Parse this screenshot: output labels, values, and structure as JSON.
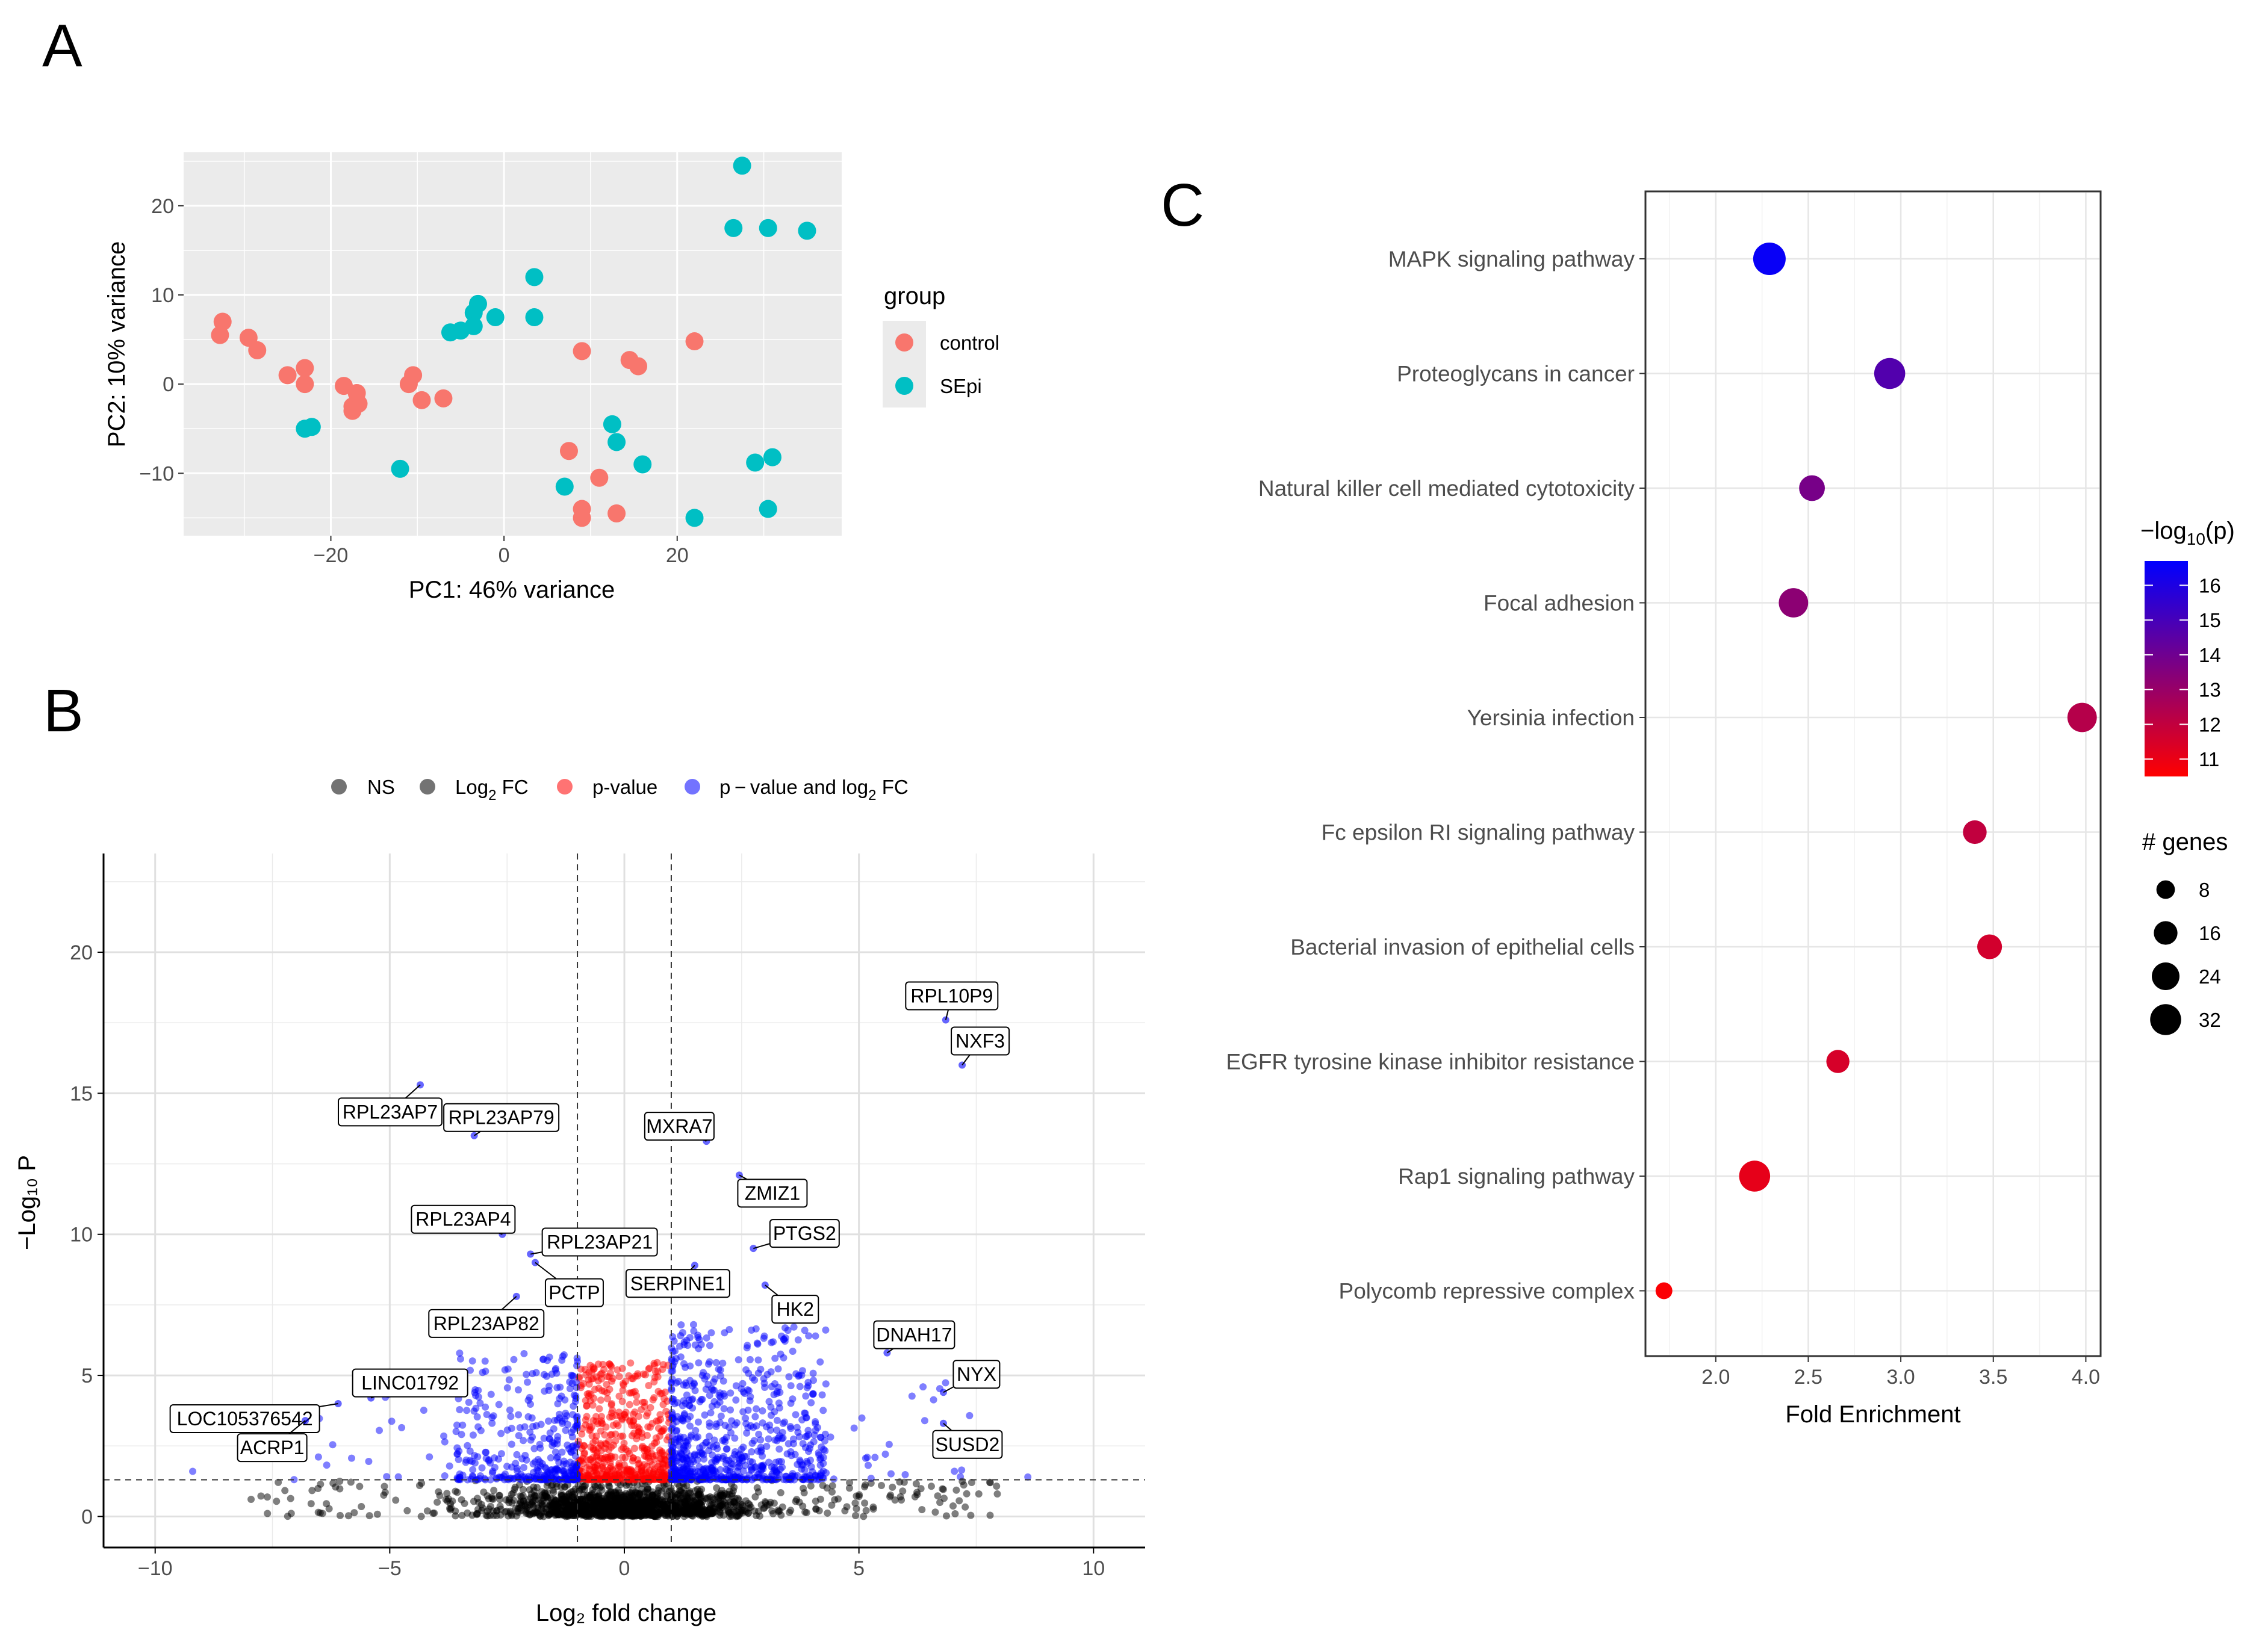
{
  "panels": {
    "a": "A",
    "b": "B",
    "c": "C"
  },
  "chart_data": [
    {
      "id": "pca",
      "type": "scatter",
      "title": "",
      "xlabel": "PC1: 46% variance",
      "ylabel": "PC2: 10% variance",
      "xlim": [
        -37,
        39
      ],
      "ylim": [
        -17,
        26
      ],
      "xticks": [
        -20,
        0,
        20
      ],
      "yticks": [
        -10,
        0,
        10,
        20
      ],
      "legend": {
        "title": "group",
        "position": "right"
      },
      "series": [
        {
          "name": "control",
          "color": "#F8766D",
          "points": [
            [
              -32.5,
              7
            ],
            [
              -32.8,
              5.5
            ],
            [
              -29.5,
              5.2
            ],
            [
              -28.5,
              3.8
            ],
            [
              -25,
              1
            ],
            [
              -23,
              1.8
            ],
            [
              -23,
              0
            ],
            [
              -18.5,
              -0.2
            ],
            [
              -17,
              -1
            ],
            [
              -17.5,
              -2.5
            ],
            [
              -16.8,
              -2.2
            ],
            [
              -17.5,
              -3
            ],
            [
              -11,
              0
            ],
            [
              -10.5,
              1
            ],
            [
              -9.5,
              -1.8
            ],
            [
              -7,
              -1.6
            ],
            [
              9,
              3.7
            ],
            [
              14.5,
              2.7
            ],
            [
              15.5,
              2
            ],
            [
              22,
              4.8
            ],
            [
              7.5,
              -7.5
            ],
            [
              11,
              -10.5
            ],
            [
              9,
              -14
            ],
            [
              9,
              -15
            ],
            [
              13,
              -14.5
            ]
          ]
        },
        {
          "name": "SEpi",
          "color": "#00BFC4",
          "points": [
            [
              27.5,
              24.5
            ],
            [
              26.5,
              17.5
            ],
            [
              30.5,
              17.5
            ],
            [
              35,
              17.2
            ],
            [
              3.5,
              12
            ],
            [
              3.5,
              7.5
            ],
            [
              -3,
              9
            ],
            [
              -3.5,
              8
            ],
            [
              -1,
              7.5
            ],
            [
              -5,
              6
            ],
            [
              -6.2,
              5.8
            ],
            [
              -3.5,
              6.5
            ],
            [
              -23,
              -5
            ],
            [
              -22.2,
              -4.8
            ],
            [
              -12,
              -9.5
            ],
            [
              12.5,
              -4.5
            ],
            [
              13,
              -6.5
            ],
            [
              16,
              -9
            ],
            [
              7,
              -11.5
            ],
            [
              29,
              -8.8
            ],
            [
              31,
              -8.2
            ],
            [
              30.5,
              -14
            ],
            [
              22,
              -15
            ]
          ]
        }
      ]
    },
    {
      "id": "volcano",
      "type": "scatter",
      "title": "",
      "xlabel": "Log₂ fold change",
      "ylabel": "−Log₁₀ P",
      "xlim": [
        -11.1,
        11.1
      ],
      "ylim": [
        -1.1,
        23.5
      ],
      "xticks": [
        -10,
        -5,
        0,
        5,
        10
      ],
      "yticks": [
        0,
        5,
        10,
        15,
        20
      ],
      "thresholds": {
        "log2fc": [
          -1,
          1
        ],
        "neglog10p": 1.3
      },
      "legend": {
        "position": "top",
        "entries": [
          {
            "label": "NS",
            "color": "#000000"
          },
          {
            "label_main": "Log",
            "label_sub": "2",
            "label_tail": " FC",
            "color": "#000000"
          },
          {
            "label": "p-value",
            "color": "#FF0000"
          },
          {
            "label_main": "p − value and log",
            "label_sub": "2",
            "label_tail": " FC",
            "color": "#0000FF"
          }
        ]
      },
      "labeled_genes": [
        {
          "label": "RPL10P9",
          "x": 6.85,
          "y": 17.6
        },
        {
          "label": "NXF3",
          "x": 7.2,
          "y": 16.0
        },
        {
          "label": "RPL23AP7",
          "x": -4.35,
          "y": 15.3
        },
        {
          "label": "RPL23AP79",
          "x": -3.2,
          "y": 13.5
        },
        {
          "label": "MXRA7",
          "x": 1.75,
          "y": 13.3
        },
        {
          "label": "ZMIZ1",
          "x": 2.45,
          "y": 12.1
        },
        {
          "label": "RPL23AP4",
          "x": -2.6,
          "y": 10.0
        },
        {
          "label": "RPL23AP21",
          "x": -2.0,
          "y": 9.3
        },
        {
          "label": "PTGS2",
          "x": 2.75,
          "y": 9.5
        },
        {
          "label": "PCTP",
          "x": -1.9,
          "y": 9.0
        },
        {
          "label": "SERPINE1",
          "x": 1.5,
          "y": 8.9
        },
        {
          "label": "HK2",
          "x": 3.0,
          "y": 8.2
        },
        {
          "label": "RPL23AP82",
          "x": -2.3,
          "y": 7.8
        },
        {
          "label": "DNAH17",
          "x": 5.6,
          "y": 5.8
        },
        {
          "label": "NYX",
          "x": 6.8,
          "y": 4.4
        },
        {
          "label": "LINC01792",
          "x": -5.4,
          "y": 4.2
        },
        {
          "label": "LOC105376542",
          "x": -6.1,
          "y": 4.0
        },
        {
          "label": "ACRP1",
          "x": -6.8,
          "y": 3.4
        },
        {
          "label": "SUSD2",
          "x": 6.8,
          "y": 3.3
        }
      ]
    },
    {
      "id": "enrichment",
      "type": "scatter",
      "title": "",
      "xlabel": "Fold Enrichment",
      "ylabel": "",
      "xlim": [
        1.62,
        4.08
      ],
      "xticks": [
        2.0,
        2.5,
        3.0,
        3.5,
        4.0
      ],
      "xtick_labels": [
        "2.0",
        "2.5",
        "3.0",
        "3.5",
        "4.0"
      ],
      "categories": [
        "MAPK signaling pathway",
        "Proteoglycans in cancer",
        "Natural killer cell mediated cytotoxicity",
        "Focal adhesion",
        "Yersinia infection",
        "Fc epsilon RI signaling pathway",
        "Bacterial invasion of epithelial cells",
        "EGFR tyrosine kinase inhibitor resistance",
        "Rap1 signaling pathway",
        "Polycomb repressive complex"
      ],
      "points": [
        {
          "term": "MAPK signaling pathway",
          "fold": 2.29,
          "neglog10p": 16.5,
          "genes": 36
        },
        {
          "term": "Proteoglycans in cancer",
          "fold": 2.94,
          "neglog10p": 14.7,
          "genes": 32
        },
        {
          "term": "Natural killer cell mediated cytotoxicity",
          "fold": 2.52,
          "neglog10p": 13.8,
          "genes": 20
        },
        {
          "term": "Focal adhesion",
          "fold": 2.42,
          "neglog10p": 13.3,
          "genes": 28
        },
        {
          "term": "Yersinia infection",
          "fold": 3.98,
          "neglog10p": 12.3,
          "genes": 28
        },
        {
          "term": "Fc epsilon RI signaling pathway",
          "fold": 3.4,
          "neglog10p": 12.0,
          "genes": 16
        },
        {
          "term": "Bacterial invasion of epithelial cells",
          "fold": 3.48,
          "neglog10p": 11.6,
          "genes": 18
        },
        {
          "term": "EGFR tyrosine kinase inhibitor resistance",
          "fold": 2.66,
          "neglog10p": 11.5,
          "genes": 15
        },
        {
          "term": "Rap1 signaling pathway",
          "fold": 2.21,
          "neglog10p": 11.1,
          "genes": 32
        },
        {
          "term": "Polycomb repressive complex",
          "fold": 1.72,
          "neglog10p": 10.6,
          "genes": 6
        }
      ],
      "color_legend": {
        "title_main": "−log",
        "title_sub": "10",
        "title_tail": "(p)",
        "range": [
          10.5,
          16.7
        ],
        "ticks": [
          11,
          12,
          13,
          14,
          15,
          16
        ],
        "low": "#FF0000",
        "high": "#0000FF"
      },
      "size_legend": {
        "title": "# genes",
        "values": [
          8,
          16,
          24,
          32
        ]
      }
    }
  ]
}
